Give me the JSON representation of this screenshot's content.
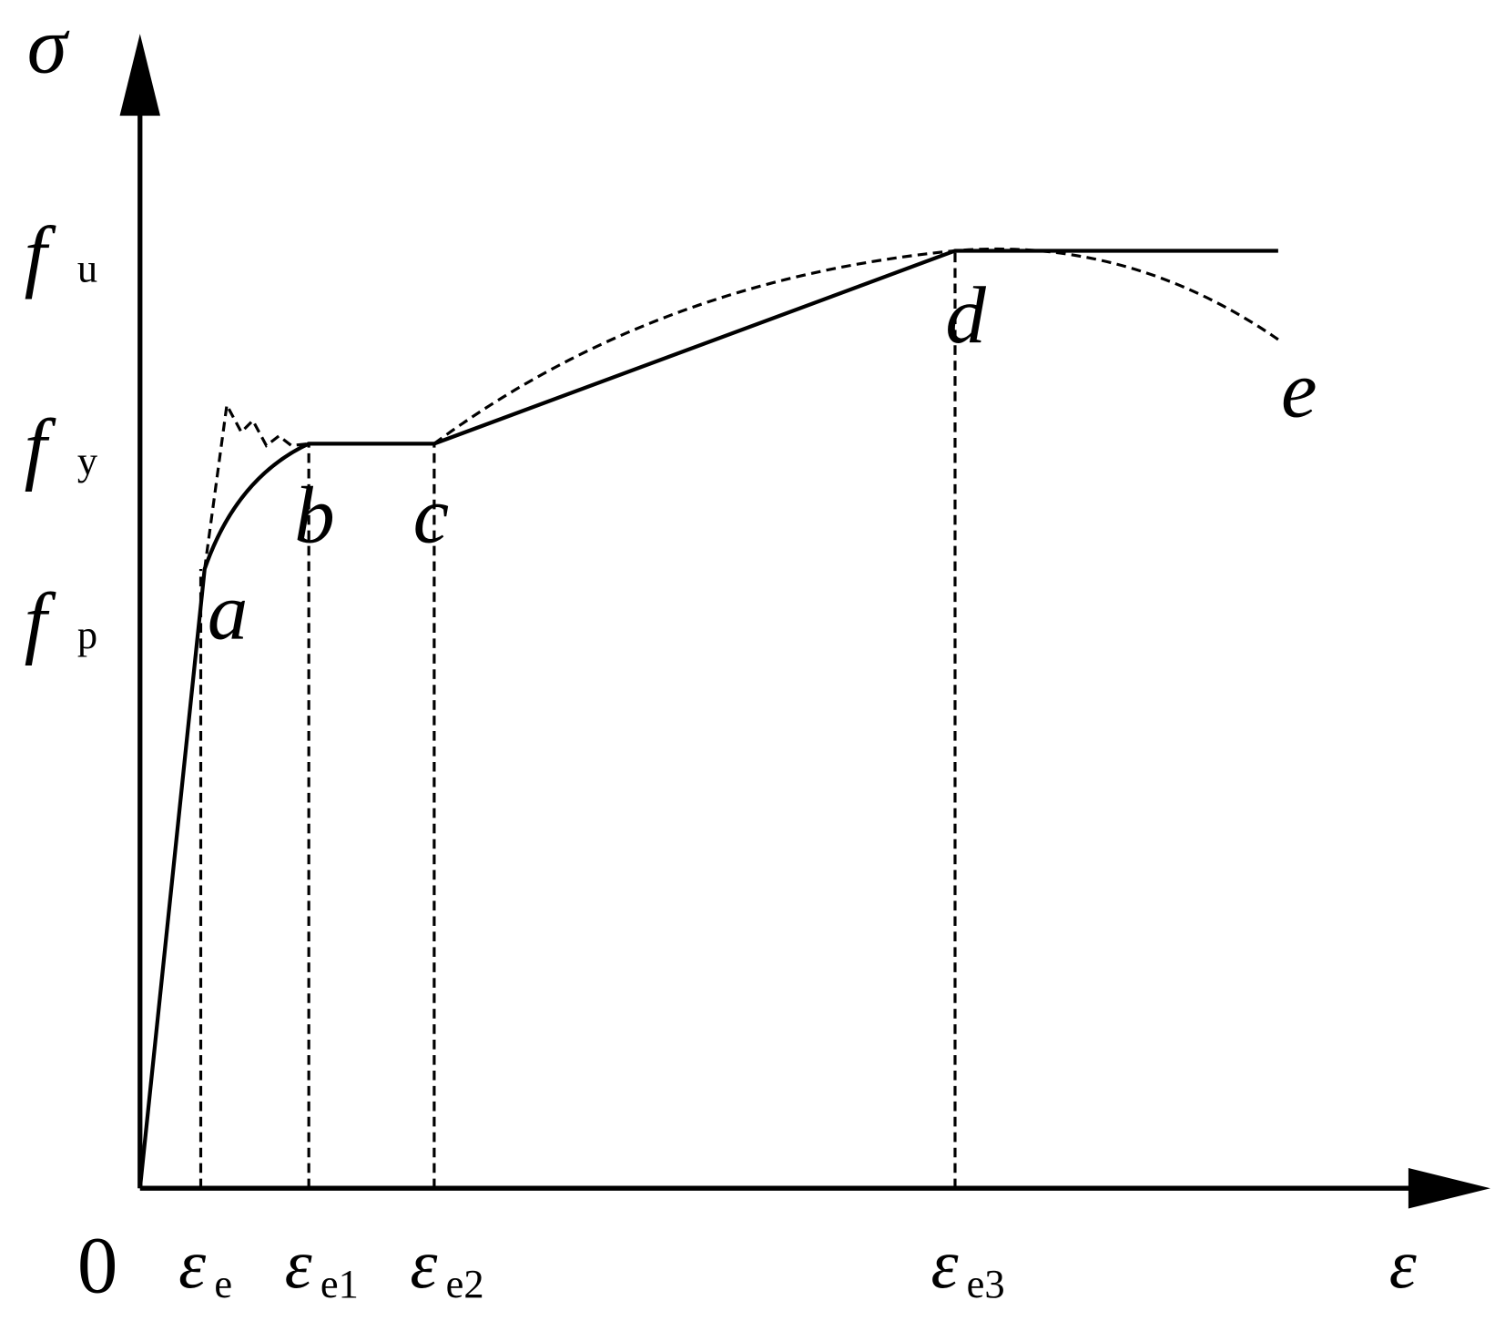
{
  "axes": {
    "y_label": "σ",
    "x_label": "ε",
    "origin": "0"
  },
  "stress_levels": [
    {
      "symbol": "f",
      "subscript": "u"
    },
    {
      "symbol": "f",
      "subscript": "y"
    },
    {
      "symbol": "f",
      "subscript": "p"
    }
  ],
  "strain_levels": [
    {
      "symbol": "ε",
      "subscript": "e"
    },
    {
      "symbol": "ε",
      "subscript": "e1"
    },
    {
      "symbol": "ε",
      "subscript": "e2"
    },
    {
      "symbol": "ε",
      "subscript": "e3"
    }
  ],
  "points": [
    "a",
    "b",
    "c",
    "d",
    "e"
  ]
}
